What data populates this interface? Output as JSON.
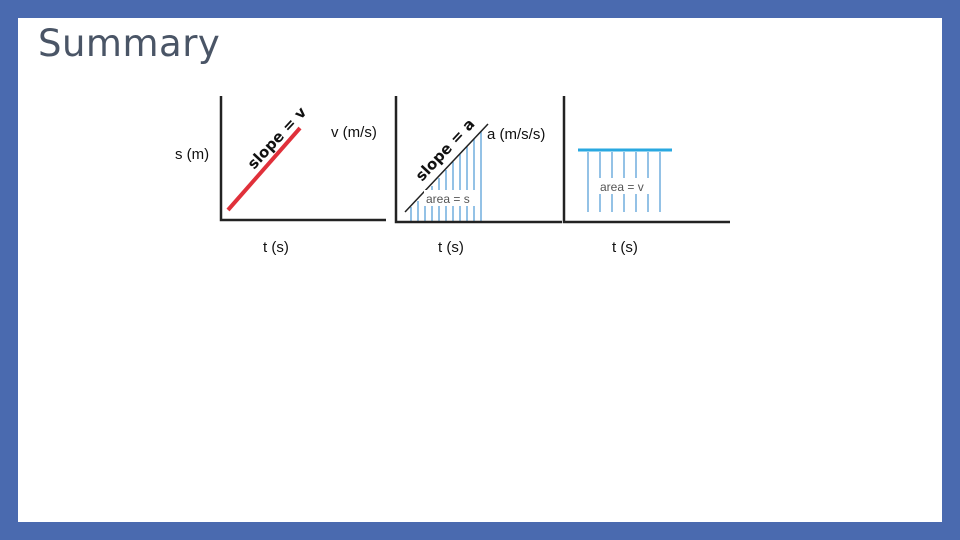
{
  "slide": {
    "title": "Summary",
    "graphs": [
      {
        "id": "position",
        "y_label": "s (m)",
        "x_label": "t (s)",
        "annotation": "slope = v",
        "line_color": "#e0303a"
      },
      {
        "id": "velocity",
        "y_label": "v (m/s)",
        "x_label": "t (s)",
        "annotation": "slope = a",
        "area_label": "area = s",
        "hatch_color": "#5aa0d8"
      },
      {
        "id": "acceleration",
        "y_label": "a (m/s/s)",
        "x_label": "t (s)",
        "area_label": "area = v",
        "line_color": "#2aa8e0",
        "hatch_color": "#5aa0d8"
      }
    ]
  }
}
